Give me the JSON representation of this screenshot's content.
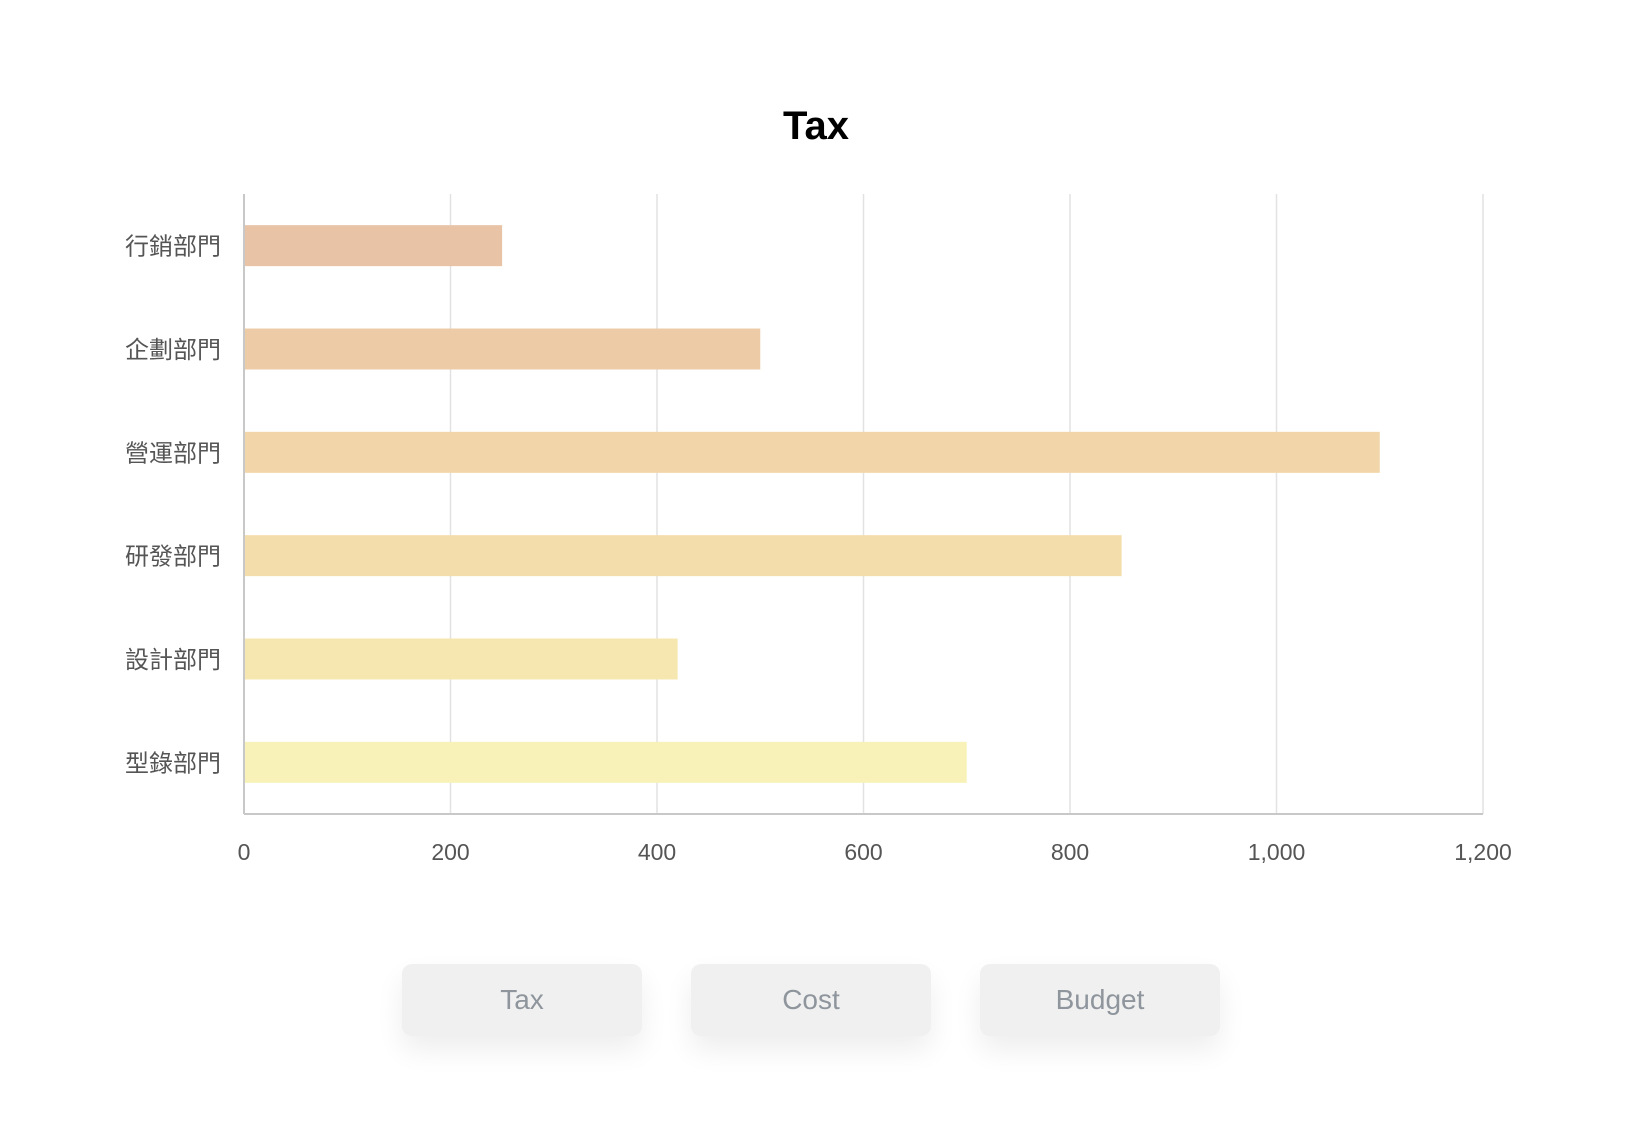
{
  "toggles": {
    "buttons": [
      {
        "label": "Tax"
      },
      {
        "label": "Cost"
      },
      {
        "label": "Budget"
      }
    ],
    "active": "Tax"
  },
  "chart_data": {
    "type": "bar",
    "orientation": "horizontal",
    "title": "Tax",
    "xlabel": "",
    "ylabel": "",
    "categories": [
      "行銷部門",
      "企劃部門",
      "營運部門",
      "研發部門",
      "設計部門",
      "型錄部門"
    ],
    "values": [
      250,
      500,
      1100,
      850,
      420,
      700
    ],
    "xlim": [
      0,
      1200
    ],
    "xticks": [
      0,
      200,
      400,
      600,
      800,
      1000,
      1200
    ],
    "xtick_labels": [
      "0",
      "200",
      "400",
      "600",
      "800",
      "1,000",
      "1,200"
    ],
    "grid": true,
    "bar_colors": [
      "#e9c3a6",
      "#edcba6",
      "#f2d6a9",
      "#f3ddaa",
      "#f6e7b0",
      "#f8f2b8"
    ],
    "colors": {
      "grid": "#e2e2e2",
      "axis": "#c8c8c8",
      "tick_text": "#555555"
    }
  }
}
